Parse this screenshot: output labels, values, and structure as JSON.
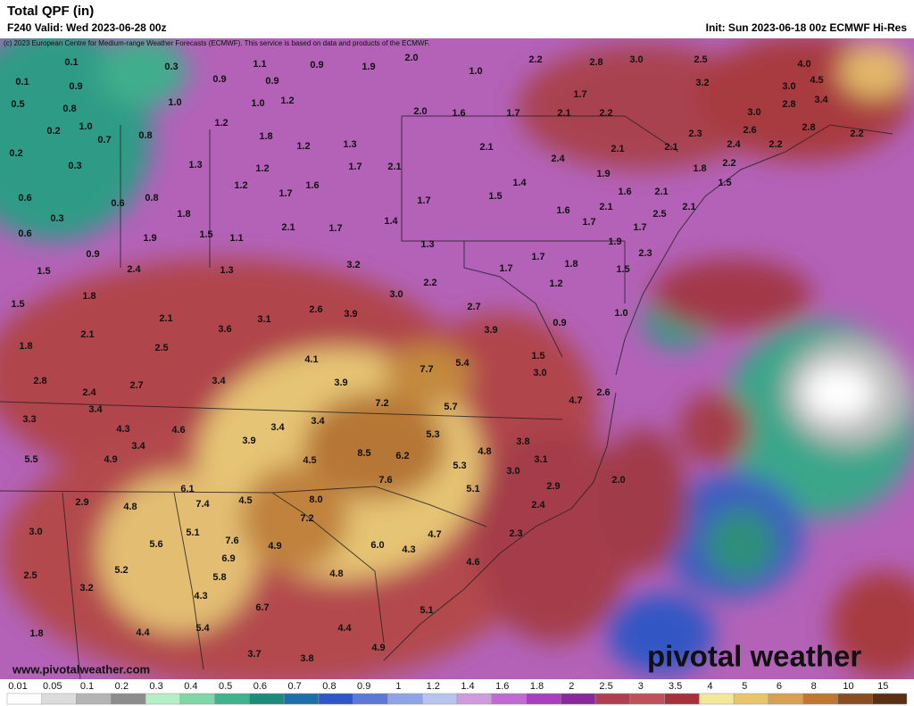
{
  "header": {
    "title": "Total QPF (in)",
    "valid": "F240 Valid: Wed 2023-06-28 00z",
    "init": "Init: Sun 2023-06-18 00z ECMWF Hi-Res",
    "copyright": "(c) 2023 European Centre for Medium-range Weather Forecasts (ECMWF). This service is based on data and products of the ECMWF."
  },
  "map_labels": [
    "0.1",
    "0.3",
    "1.1",
    "0.9",
    "1.9",
    "2.0",
    "1.0",
    "2.2",
    "2.8",
    "3.0",
    "2.5",
    "4.0",
    "0.1",
    "0.9",
    "0.9",
    "0.9",
    "3.2",
    "3.0",
    "4.5",
    "0.5",
    "0.8",
    "1.0",
    "1.0",
    "1.2",
    "1.7",
    "2.8",
    "3.4",
    "2.0",
    "1.6",
    "1.7",
    "2.1",
    "2.2",
    "3.0",
    "0.2",
    "1.0",
    "0.7",
    "0.8",
    "1.2",
    "1.8",
    "2.6",
    "2.3",
    "2.8",
    "2.2",
    "0.2",
    "1.2",
    "1.3",
    "2.1",
    "2.1",
    "2.1",
    "2.4",
    "2.2",
    "0.3",
    "1.3",
    "1.2",
    "1.7",
    "2.1",
    "2.4",
    "1.9",
    "1.8",
    "2.2",
    "0.6",
    "0.6",
    "0.8",
    "1.2",
    "1.7",
    "1.6",
    "1.4",
    "1.5",
    "1.7",
    "1.6",
    "2.1",
    "1.5",
    "0.3",
    "1.8",
    "1.6",
    "1.7",
    "2.1",
    "2.5",
    "2.1",
    "1.4",
    "0.6",
    "1.9",
    "1.5",
    "1.1",
    "2.1",
    "1.7",
    "1.7",
    "0.9",
    "1.3",
    "1.9",
    "2.3",
    "1.5",
    "2.4",
    "1.3",
    "3.2",
    "1.7",
    "1.7",
    "1.8",
    "1.5",
    "2.2",
    "1.8",
    "3.0",
    "1.2",
    "1.5",
    "2.1",
    "3.1",
    "2.6",
    "3.9",
    "2.7",
    "1.0",
    "2.1",
    "3.6",
    "3.9",
    "0.9",
    "1.8",
    "2.5",
    "1.5",
    "4.1",
    "7.7",
    "5.4",
    "3.0",
    "2.8",
    "2.7",
    "3.4",
    "3.9",
    "2.4",
    "2.6",
    "4.7",
    "7.2",
    "5.7",
    "3.4",
    "3.3",
    "4.3",
    "4.6",
    "3.4",
    "3.4",
    "5.3",
    "3.8",
    "3.4",
    "3.9",
    "4.8",
    "5.5",
    "4.9",
    "4.5",
    "8.5",
    "6.2",
    "5.3",
    "3.1",
    "3.0",
    "6.1",
    "7.6",
    "5.1",
    "2.0",
    "2.9",
    "2.9",
    "4.8",
    "7.4",
    "4.5",
    "8.0",
    "2.4",
    "3.0",
    "5.1",
    "7.2",
    "4.7",
    "2.3",
    "5.6",
    "7.6",
    "4.9",
    "6.0",
    "4.3",
    "6.9",
    "4.6",
    "5.2",
    "5.8",
    "4.8",
    "2.5",
    "3.2",
    "4.3",
    "6.7",
    "5.1",
    "5.4",
    "4.4",
    "4.4",
    "1.8",
    "4.9",
    "3.7",
    "3.8"
  ],
  "footer": {
    "website": "www.pivotalweather.com",
    "logo": "pivotal weather"
  },
  "colorbar": {
    "labels": [
      "0.01",
      "0.05",
      "0.1",
      "0.2",
      "0.3",
      "0.4",
      "0.5",
      "0.6",
      "0.7",
      "0.8",
      "0.9",
      "1",
      "1.2",
      "1.4",
      "1.6",
      "1.8",
      "2",
      "2.5",
      "3",
      "3.5",
      "4",
      "5",
      "6",
      "8",
      "10",
      "15"
    ],
    "colors": [
      "#ffffff",
      "#dcdcdc",
      "#b4b4b4",
      "#8c8c8c",
      "#b4efc8",
      "#7fd6a6",
      "#3fb38b",
      "#1e8c7a",
      "#1c6fa8",
      "#2f56c8",
      "#5c78d8",
      "#8ea4e6",
      "#b8c4f0",
      "#d09ae0",
      "#c16ad4",
      "#a93fc0",
      "#8a2a9a",
      "#b04050",
      "#c0505a",
      "#a8303a",
      "#f3e89a",
      "#e8c46a",
      "#d8a050",
      "#c07830",
      "#8a4e22",
      "#5a3014"
    ]
  }
}
